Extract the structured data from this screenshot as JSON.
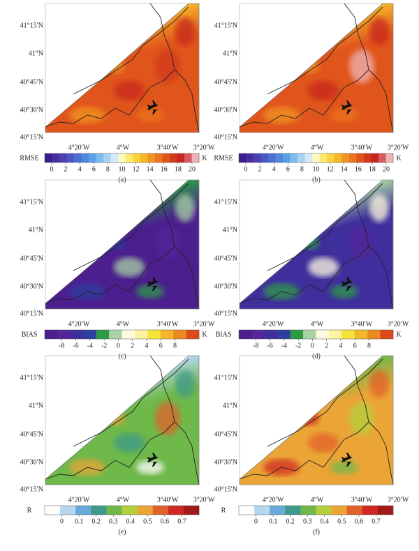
{
  "panels": [
    {
      "label": "(a)",
      "lat_labels": [
        "41°15′N",
        "41°N",
        "40°45′N",
        "40°30′N",
        "40°15′N"
      ],
      "lon_labels": [
        "4°20′W",
        "4°W",
        "3°40′W",
        "3°20′W"
      ],
      "colorbar": {
        "title": "RMSE",
        "unit": "K",
        "lim": [
          -1,
          21
        ],
        "ticks": [
          0,
          2,
          4,
          6,
          8,
          10,
          12,
          14,
          16,
          18,
          20
        ],
        "colors": [
          "#3b1d8f",
          "#4a2ba0",
          "#4c3fb4",
          "#4a56c4",
          "#4a6fd0",
          "#4f88dc",
          "#5aa2e6",
          "#7dbdee",
          "#a7d4f3",
          "#d3e9f8",
          "#fdf7c0",
          "#fde96a",
          "#fbd23a",
          "#f6b62a",
          "#f19522",
          "#ea751e",
          "#e0551c",
          "#d3381c",
          "#c7261f",
          "#d65a5e",
          "#eeb3b3"
        ]
      }
    },
    {
      "label": "(b)",
      "lat_labels": [
        "41°15′N",
        "41°N",
        "40°45′N",
        "40°30′N",
        "40°15′N"
      ],
      "lon_labels": [
        "4°20′W",
        "4°W",
        "3°40′W",
        "3°20′W"
      ],
      "colorbar": {
        "title": "RMSE",
        "unit": "K",
        "lim": [
          -1,
          21
        ],
        "ticks": [
          0,
          2,
          4,
          6,
          8,
          10,
          12,
          14,
          16,
          18,
          20
        ],
        "colors": [
          "#3b1d8f",
          "#4a2ba0",
          "#4c3fb4",
          "#4a56c4",
          "#4a6fd0",
          "#4f88dc",
          "#5aa2e6",
          "#7dbdee",
          "#a7d4f3",
          "#d3e9f8",
          "#fdf7c0",
          "#fde96a",
          "#fbd23a",
          "#f6b62a",
          "#f19522",
          "#ea751e",
          "#e0551c",
          "#d3381c",
          "#c7261f",
          "#d65a5e",
          "#eeb3b3"
        ]
      }
    },
    {
      "label": "(c)",
      "lat_labels": [
        "41°15′N",
        "41°N",
        "40°45′N",
        "40°30′N",
        "40°15′N"
      ],
      "lon_labels": [
        "4°20′W",
        "4°W",
        "3°40′W",
        "3°20′W"
      ],
      "colorbar": {
        "title": "BIAS",
        "unit": "K",
        "lim": [
          -10.4,
          11.4
        ],
        "ticks": [
          -8,
          -6,
          -4,
          -2,
          0,
          2,
          4,
          6,
          8
        ],
        "colors": [
          "#4b1f8e",
          "#52279a",
          "#3f2f9c",
          "#2f3e9e",
          "#2d9a46",
          "#a9d3a4",
          "#fffbe0",
          "#fdf3a0",
          "#f7e43a",
          "#f3b72a",
          "#ec8a22",
          "#dc4a1c"
        ]
      }
    },
    {
      "label": "(d)",
      "lat_labels": [
        "41°15′N",
        "41°N",
        "40°45′N",
        "40°30′N",
        "40°15′N"
      ],
      "lon_labels": [
        "4°20′W",
        "4°W",
        "3°40′W",
        "3°20′W"
      ],
      "colorbar": {
        "title": "BIAS",
        "unit": "K",
        "lim": [
          -10.4,
          11.4
        ],
        "ticks": [
          -8,
          -6,
          -4,
          -2,
          0,
          2,
          4,
          6,
          8
        ],
        "colors": [
          "#4b1f8e",
          "#52279a",
          "#3f2f9c",
          "#2f3e9e",
          "#2d9a46",
          "#a9d3a4",
          "#fffbe0",
          "#fdf3a0",
          "#f7e43a",
          "#f3b72a",
          "#ec8a22",
          "#dc4a1c"
        ]
      }
    },
    {
      "label": "(e)",
      "lat_labels": [
        "41°15′N",
        "41°N",
        "40°45′N",
        "40°30′N",
        "40°15′N"
      ],
      "lon_labels": [
        "4°20′W",
        "4°W",
        "3°40′W",
        "3°20′W"
      ],
      "colorbar": {
        "title": "R",
        "unit": "",
        "lim": [
          -0.1,
          0.8
        ],
        "ticks": [
          0,
          0.1,
          0.2,
          0.3,
          0.4,
          0.5,
          0.6,
          0.7
        ],
        "colors": [
          "#ffffff",
          "#b6d8ef",
          "#6aa9dc",
          "#3e9a8a",
          "#6fb84a",
          "#b5cf3c",
          "#eba536",
          "#e2602a",
          "#cf2a22",
          "#a01a1a"
        ]
      }
    },
    {
      "label": "(f)",
      "lat_labels": [
        "41°15′N",
        "41°N",
        "40°45′N",
        "40°30′N",
        "40°15′N"
      ],
      "lon_labels": [
        "4°20′W",
        "4°W",
        "3°40′W",
        "3°20′W"
      ],
      "colorbar": {
        "title": "R",
        "unit": "",
        "lim": [
          -0.1,
          0.8
        ],
        "ticks": [
          0,
          0.1,
          0.2,
          0.3,
          0.4,
          0.5,
          0.6,
          0.7
        ],
        "colors": [
          "#ffffff",
          "#b6d8ef",
          "#6aa9dc",
          "#3e9a8a",
          "#6fb84a",
          "#b5cf3c",
          "#eba536",
          "#e2602a",
          "#cf2a22",
          "#a01a1a"
        ]
      }
    }
  ]
}
